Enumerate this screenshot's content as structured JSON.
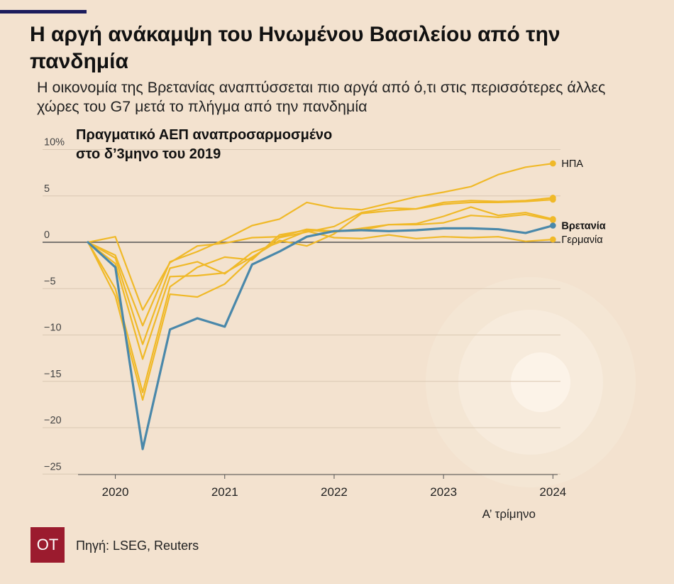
{
  "header": {
    "title": "Η αργή ανάκαμψη του Ηνωμένου Βασιλείου από την πανδημία",
    "subtitle": "Η οικονομία της Βρετανίας αναπτύσσεται πιο αργά από ό,τι στις περισσότερες άλλες χώρες του G7 μετά το πλήγμα από την πανδημία"
  },
  "footer": {
    "logo_text": "OT",
    "source": "Πηγή: LSEG, Reuters"
  },
  "colors": {
    "background": "#f3e2cf",
    "others": "#f0b928",
    "uk": "#4a88aa",
    "grid": "#d9c8b3",
    "zero_line": "#555555",
    "logo": "#9b1b2e"
  },
  "chart_data": {
    "type": "line",
    "title": "Πραγματικό ΑΕΠ αναπροσαρμοσμένο στο δ’3μηνο του 2019",
    "x_tick_labels": [
      "2020",
      "2021",
      "2022",
      "2023",
      "2024"
    ],
    "x_note": "Α’ τρίμηνο",
    "y_tick_labels": [
      "10%",
      "5",
      "0",
      "−5",
      "−10",
      "−15",
      "−20",
      "−25"
    ],
    "ylim": [
      -25,
      10
    ],
    "grid": true,
    "x_quarters": [
      "2019 Q4",
      "2020 Q1",
      "2020 Q2",
      "2020 Q3",
      "2020 Q4",
      "2021 Q1",
      "2021 Q2",
      "2021 Q3",
      "2021 Q4",
      "2022 Q1",
      "2022 Q2",
      "2022 Q3",
      "2022 Q4",
      "2023 Q1",
      "2023 Q2",
      "2023 Q3",
      "2023 Q4",
      "2024 Q1"
    ],
    "series": [
      {
        "name": "ΗΠΑ",
        "label": "ΗΠΑ",
        "highlight": false,
        "values": [
          0,
          -1.4,
          -9.0,
          -2.1,
          -1.0,
          0.3,
          1.8,
          2.5,
          4.3,
          3.7,
          3.5,
          4.2,
          4.9,
          5.4,
          6.0,
          7.3,
          8.1,
          8.5
        ]
      },
      {
        "name": "Βρετανία",
        "label": "Βρετανία",
        "highlight": true,
        "values": [
          0,
          -2.7,
          -22.3,
          -9.4,
          -8.2,
          -9.1,
          -2.4,
          -1.0,
          0.6,
          1.2,
          1.3,
          1.2,
          1.3,
          1.5,
          1.5,
          1.4,
          1.0,
          1.8
        ]
      },
      {
        "name": "Γερμανία",
        "label": "Γερμανία",
        "highlight": false,
        "values": [
          0,
          -1.7,
          -11.0,
          -2.8,
          -2.1,
          -3.4,
          -1.1,
          0.0,
          1.2,
          0.5,
          0.4,
          0.8,
          0.4,
          0.6,
          0.5,
          0.6,
          0.1,
          0.3
        ]
      },
      {
        "name": "",
        "label": "",
        "highlight": false,
        "values": [
          0,
          0.6,
          -7.3,
          -2.2,
          -0.4,
          -0.1,
          0.5,
          0.6,
          1.4,
          1.2,
          1.3,
          1.9,
          2.0,
          2.8,
          3.8,
          2.9,
          3.2,
          2.5
        ]
      },
      {
        "name": "",
        "label": "",
        "highlight": false,
        "values": [
          0,
          -5.8,
          -17.0,
          -5.6,
          -5.9,
          -4.5,
          -1.7,
          0.5,
          1.1,
          1.7,
          3.2,
          3.7,
          3.6,
          4.3,
          4.5,
          4.4,
          4.5,
          4.8
        ]
      },
      {
        "name": "",
        "label": "",
        "highlight": false,
        "values": [
          0,
          -2.3,
          -12.6,
          -3.7,
          -3.6,
          -3.3,
          -1.6,
          0.2,
          -0.4,
          0.9,
          3.1,
          3.4,
          3.6,
          4.1,
          4.3,
          4.3,
          4.4,
          4.6
        ]
      },
      {
        "name": "",
        "label": "",
        "highlight": false,
        "values": [
          0,
          -5.0,
          -16.2,
          -4.8,
          -2.7,
          -1.6,
          -1.9,
          0.8,
          1.3,
          1.1,
          1.5,
          1.9,
          1.9,
          2.1,
          2.9,
          2.7,
          3.0,
          2.4
        ]
      }
    ]
  }
}
